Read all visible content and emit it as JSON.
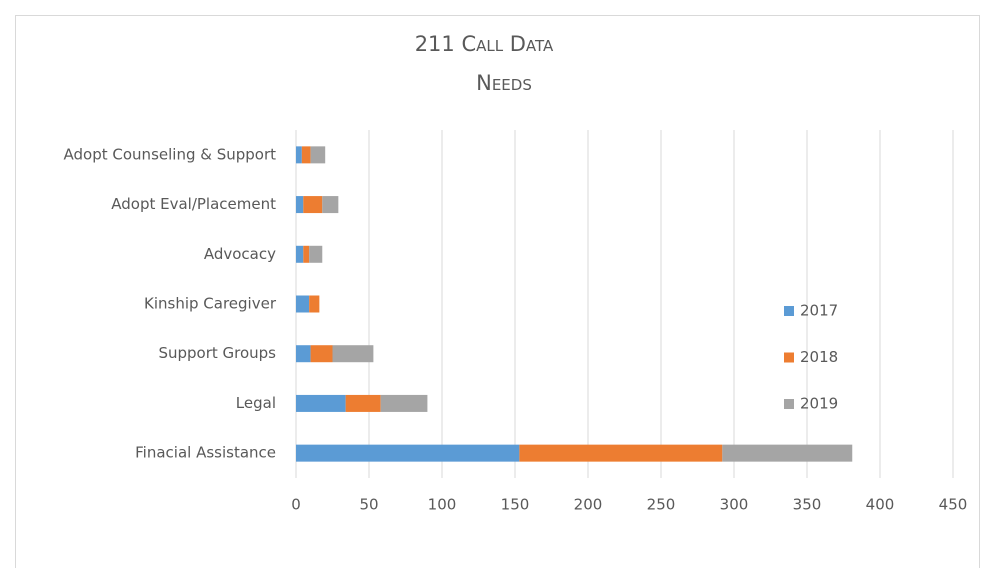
{
  "chart_data": {
    "type": "stacked-barh",
    "title": "211 Call Data",
    "subtitle": "Needs",
    "categories": [
      "Adopt Counseling & Support",
      "Adopt Eval/Placement",
      "Advocacy",
      "Kinship Caregiver",
      "Support Groups",
      "Legal",
      "Finacial Assistance"
    ],
    "series": [
      {
        "name": "2017",
        "color": "#5b9bd5",
        "values": [
          4,
          5,
          5,
          9,
          10,
          34,
          153
        ]
      },
      {
        "name": "2018",
        "color": "#ed7d31",
        "values": [
          6,
          13,
          4,
          7,
          15,
          24,
          139
        ]
      },
      {
        "name": "2019",
        "color": "#a5a5a5",
        "values": [
          10,
          11,
          9,
          0,
          28,
          32,
          89
        ]
      }
    ],
    "xlim": [
      0,
      450
    ],
    "xticks": [
      0,
      50,
      100,
      150,
      200,
      250,
      300,
      350,
      400,
      450
    ],
    "grid": true,
    "legend": "right"
  }
}
